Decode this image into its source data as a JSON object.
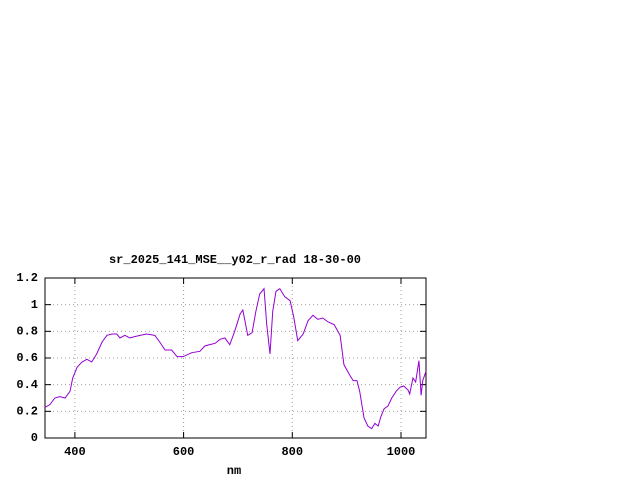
{
  "chart_data": {
    "type": "line",
    "title": "sr_2025_141_MSE__y02_r_rad 18-30-00",
    "x_label": "nm",
    "x": [
      345,
      354,
      363,
      372,
      382,
      391,
      396,
      404,
      413,
      422,
      431,
      440,
      450,
      459,
      468,
      477,
      483,
      492,
      501,
      510,
      520,
      532,
      547,
      556,
      566,
      578,
      588,
      599,
      615,
      630,
      639,
      648,
      658,
      667,
      676,
      685,
      694,
      704,
      709,
      718,
      726,
      733,
      740,
      748,
      753,
      759,
      764,
      770,
      777,
      786,
      796,
      803,
      810,
      820,
      829,
      838,
      847,
      856,
      866,
      877,
      888,
      895,
      906,
      912,
      919,
      924,
      932,
      939,
      946,
      952,
      958,
      963,
      969,
      976,
      983,
      991,
      998,
      1005,
      1013,
      1016,
      1022,
      1027,
      1033,
      1037,
      1040,
      1046
    ],
    "series": [
      {
        "color": "#9400d3",
        "values": [
          0.23,
          0.25,
          0.3,
          0.31,
          0.3,
          0.35,
          0.45,
          0.53,
          0.57,
          0.59,
          0.57,
          0.63,
          0.72,
          0.77,
          0.78,
          0.78,
          0.75,
          0.77,
          0.75,
          0.76,
          0.77,
          0.78,
          0.77,
          0.72,
          0.66,
          0.66,
          0.61,
          0.61,
          0.64,
          0.65,
          0.69,
          0.7,
          0.71,
          0.74,
          0.75,
          0.7,
          0.8,
          0.93,
          0.96,
          0.77,
          0.79,
          0.95,
          1.08,
          1.12,
          0.85,
          0.63,
          0.95,
          1.1,
          1.12,
          1.06,
          1.03,
          0.9,
          0.73,
          0.78,
          0.88,
          0.92,
          0.89,
          0.9,
          0.87,
          0.85,
          0.77,
          0.55,
          0.47,
          0.43,
          0.43,
          0.35,
          0.15,
          0.09,
          0.07,
          0.11,
          0.09,
          0.16,
          0.22,
          0.24,
          0.3,
          0.35,
          0.38,
          0.39,
          0.36,
          0.33,
          0.45,
          0.42,
          0.58,
          0.32,
          0.43,
          0.5
        ]
      }
    ],
    "xlim": [
      345,
      1046
    ],
    "xticks": [
      400,
      600,
      800,
      1000
    ],
    "ylim": [
      0,
      1.2
    ],
    "yticks": [
      0,
      0.2,
      0.4,
      0.6,
      0.8,
      1,
      1.2
    ],
    "grid": true
  }
}
